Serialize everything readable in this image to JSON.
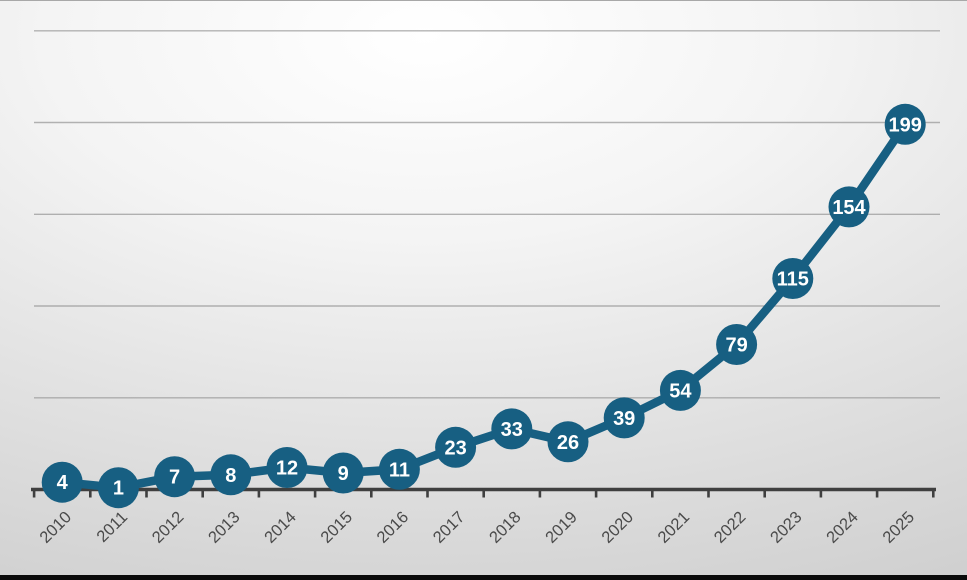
{
  "chart_data": {
    "type": "line",
    "categories": [
      "2010",
      "2011",
      "2012",
      "2013",
      "2014",
      "2015",
      "2016",
      "2017",
      "2018",
      "2019",
      "2020",
      "2021",
      "2022",
      "2023",
      "2024",
      "2025"
    ],
    "values": [
      4,
      1,
      7,
      8,
      12,
      9,
      11,
      23,
      33,
      26,
      39,
      54,
      79,
      115,
      154,
      199
    ],
    "title": "",
    "xlabel": "",
    "ylabel": "",
    "ylim": [
      0,
      250
    ],
    "grid_interval": 50,
    "grid": "horizontal",
    "legend": "none",
    "data_labels": "inside-markers",
    "x_tick_rotation": -45
  },
  "style": {
    "series_color": "#175f82",
    "marker_label_color": "#ffffff",
    "axis_color": "#3f3f3f",
    "grid_color": "#9b9b9b",
    "tick_label_color": "#4a4a4a",
    "bottom_bar_color": "#0a0a0a"
  }
}
